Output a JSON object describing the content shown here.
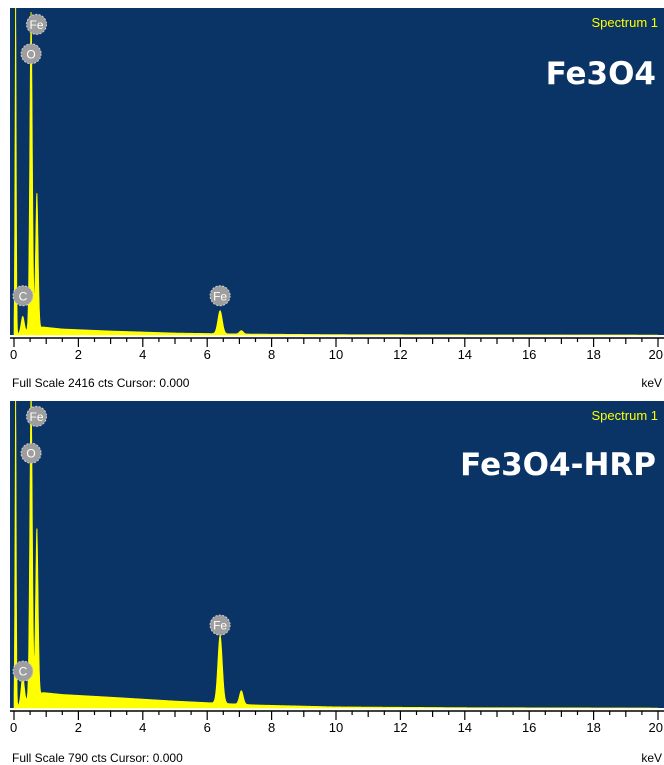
{
  "colors": {
    "plot_background": "#0b3466",
    "spectrum_fill": "#ffff00",
    "spectrum_label": "#ffff00",
    "title_text": "#ffffff",
    "peak_badge": "#9e9e9e",
    "axis": "#000000"
  },
  "chart_data": [
    {
      "type": "area",
      "spectrum_name": "Spectrum 1",
      "title": "Fe3O4",
      "xlabel": "keV",
      "xlim": [
        0,
        20
      ],
      "x_ticks": [
        "0",
        "2",
        "4",
        "6",
        "8",
        "10",
        "12",
        "14",
        "16",
        "18",
        "20"
      ],
      "footer": "Full Scale 2416 cts Cursor: 0.000",
      "full_scale_cts": 2416,
      "ylim": [
        0,
        2416
      ],
      "peaks": [
        {
          "x": 0.05,
          "y": 2416,
          "width": 0.02
        },
        {
          "x": 0.27,
          "y": 120,
          "width": 0.05
        },
        {
          "x": 0.53,
          "y": 2350,
          "width": 0.04
        },
        {
          "x": 0.71,
          "y": 1000,
          "width": 0.04
        },
        {
          "x": 6.4,
          "y": 170,
          "width": 0.07
        },
        {
          "x": 7.06,
          "y": 25,
          "width": 0.06
        }
      ],
      "background": [
        [
          0,
          0
        ],
        [
          0.9,
          60
        ],
        [
          1.5,
          45
        ],
        [
          3,
          30
        ],
        [
          5,
          15
        ],
        [
          7,
          8
        ],
        [
          10,
          3
        ],
        [
          14,
          1
        ],
        [
          20,
          0
        ]
      ],
      "peak_labels": [
        {
          "label": "Fe",
          "x": 0.7,
          "y": 0.95
        },
        {
          "label": "O",
          "x": 0.53,
          "y": 0.86
        },
        {
          "label": "C",
          "x": 0.28,
          "y": 0.12
        },
        {
          "label": "Fe",
          "x": 6.4,
          "y": 0.12
        }
      ]
    },
    {
      "type": "area",
      "spectrum_name": "Spectrum 1",
      "title": "Fe3O4-HRP",
      "xlabel": "keV",
      "xlim": [
        0,
        20
      ],
      "x_ticks": [
        "0",
        "2",
        "4",
        "6",
        "8",
        "10",
        "12",
        "14",
        "16",
        "18",
        "20"
      ],
      "footer": "Full Scale 790 cts Cursor: 0.000",
      "full_scale_cts": 790,
      "ylim": [
        0,
        790
      ],
      "peaks": [
        {
          "x": 0.05,
          "y": 790,
          "width": 0.02
        },
        {
          "x": 0.27,
          "y": 70,
          "width": 0.05
        },
        {
          "x": 0.53,
          "y": 790,
          "width": 0.04
        },
        {
          "x": 0.71,
          "y": 430,
          "width": 0.04
        },
        {
          "x": 6.4,
          "y": 175,
          "width": 0.07
        },
        {
          "x": 7.06,
          "y": 35,
          "width": 0.06
        }
      ],
      "background": [
        [
          0,
          0
        ],
        [
          0.9,
          40
        ],
        [
          1.5,
          35
        ],
        [
          3,
          28
        ],
        [
          5,
          18
        ],
        [
          6,
          14
        ],
        [
          7.5,
          8
        ],
        [
          10,
          3
        ],
        [
          14,
          1
        ],
        [
          20,
          0
        ]
      ],
      "peak_labels": [
        {
          "label": "Fe",
          "x": 0.7,
          "y": 0.95
        },
        {
          "label": "O",
          "x": 0.53,
          "y": 0.83
        },
        {
          "label": "C",
          "x": 0.28,
          "y": 0.12
        },
        {
          "label": "Fe",
          "x": 6.4,
          "y": 0.27
        }
      ]
    }
  ]
}
